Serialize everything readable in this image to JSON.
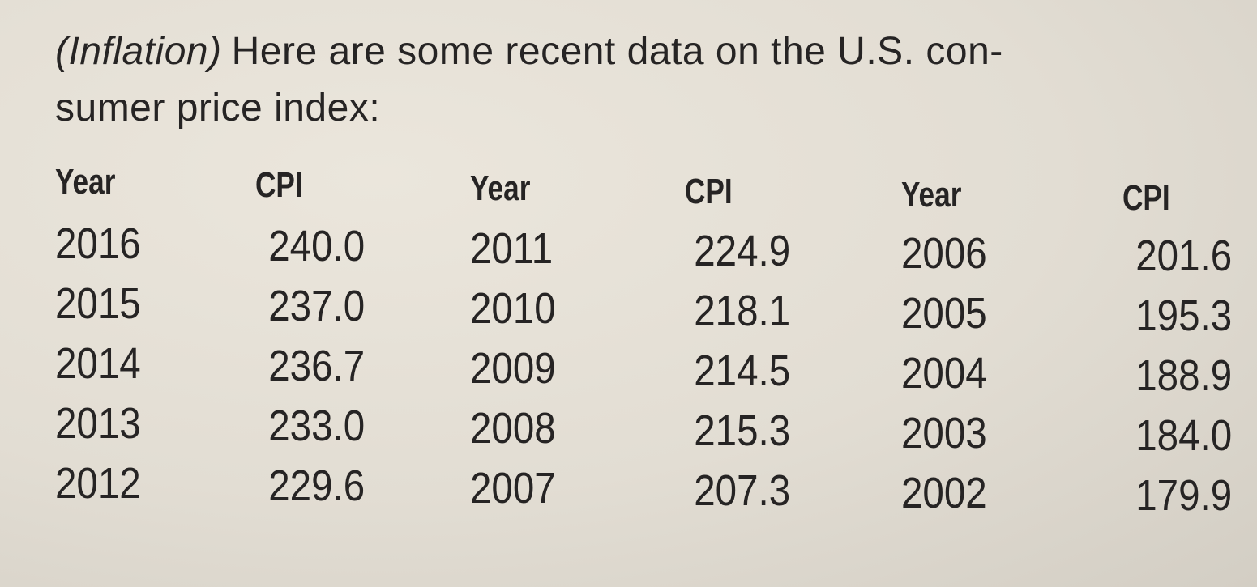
{
  "intro": {
    "label": "(Inflation)",
    "lines": [
      "Here are some recent data on the U.S. con-",
      "sumer price index:"
    ]
  },
  "table": {
    "headers": [
      "Year",
      "CPI",
      "Year",
      "CPI",
      "Year",
      "CPI"
    ],
    "rows": [
      [
        "2016",
        "240.0",
        "2011",
        "224.9",
        "2006",
        "201.6"
      ],
      [
        "2015",
        "237.0",
        "2010",
        "218.1",
        "2005",
        "195.3"
      ],
      [
        "2014",
        "236.7",
        "2009",
        "214.5",
        "2004",
        "188.9"
      ],
      [
        "2013",
        "233.0",
        "2008",
        "215.3",
        "2003",
        "184.0"
      ],
      [
        "2012",
        "229.6",
        "2007",
        "207.3",
        "2002",
        "179.9"
      ]
    ]
  }
}
